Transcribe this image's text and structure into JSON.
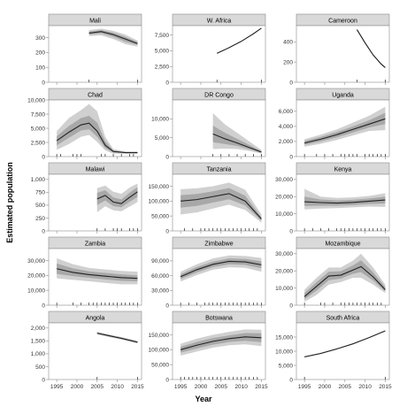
{
  "chart_data": {
    "type": "line",
    "ylabel": "Estimated population",
    "xlabel": "Year",
    "xlim": [
      1993,
      2016
    ],
    "x_ticks": [
      1995,
      2000,
      2005,
      2010,
      2015
    ],
    "x_tick_labels": [
      "1995",
      "2000",
      "2005",
      "2010",
      "2015"
    ],
    "colors": {
      "strip": "#d9d9d9",
      "band_outer": "#d0d0d0",
      "band_inner": "#a8a8a8",
      "line": "#222222",
      "axis": "#8c8c8c"
    },
    "panels": [
      {
        "title": "Mali",
        "ylim": [
          0,
          380
        ],
        "yticks": [
          0,
          100,
          200,
          300
        ],
        "ytick_labels": [
          "0",
          "100",
          "200",
          "300"
        ],
        "x": [
          2003,
          2006,
          2009,
          2012,
          2015
        ],
        "y": [
          330,
          340,
          320,
          290,
          260
        ],
        "lo90": [
          310,
          315,
          290,
          255,
          240
        ],
        "hi90": [
          350,
          360,
          345,
          320,
          280
        ],
        "lo50": [
          320,
          328,
          305,
          272,
          250
        ],
        "hi50": [
          340,
          350,
          333,
          305,
          270
        ],
        "rug": [
          2003,
          2015
        ]
      },
      {
        "title": "W. Africa",
        "ylim": [
          0,
          9000
        ],
        "yticks": [
          0,
          2500,
          5000,
          7500
        ],
        "ytick_labels": [
          "0",
          "2,500",
          "5,000",
          "7,500"
        ],
        "x": [
          2004,
          2007,
          2010,
          2013,
          2015
        ],
        "y": [
          4600,
          5500,
          6500,
          7700,
          8600
        ],
        "lo90": [
          4550,
          5450,
          6450,
          7650,
          8550
        ],
        "hi90": [
          4650,
          5550,
          6550,
          7750,
          8650
        ],
        "lo50": [
          4580,
          5480,
          6480,
          7680,
          8580
        ],
        "hi50": [
          4620,
          5520,
          6520,
          7720,
          8620
        ],
        "rug": [
          2004,
          2015
        ]
      },
      {
        "title": "Cameroon",
        "ylim": [
          0,
          560
        ],
        "yticks": [
          0,
          200,
          400
        ],
        "ytick_labels": [
          "0",
          "200",
          "400"
        ],
        "x": [
          2008,
          2010,
          2012,
          2014,
          2015
        ],
        "y": [
          520,
          390,
          270,
          180,
          145
        ],
        "lo90": [
          510,
          380,
          262,
          172,
          138
        ],
        "hi90": [
          530,
          400,
          278,
          188,
          152
        ],
        "lo50": [
          515,
          385,
          266,
          176,
          141
        ],
        "hi50": [
          525,
          395,
          274,
          184,
          149
        ],
        "rug": [
          2008,
          2015
        ]
      },
      {
        "title": "Chad",
        "ylim": [
          0,
          10000
        ],
        "yticks": [
          0,
          2500,
          5000,
          7500,
          10000
        ],
        "ytick_labels": [
          "0",
          "2,500",
          "5,000",
          "7,500",
          "10,000"
        ],
        "x": [
          1995,
          1998,
          2001,
          2003,
          2005,
          2007,
          2009,
          2012,
          2015
        ],
        "y": [
          2800,
          4300,
          5600,
          5900,
          4500,
          2000,
          900,
          700,
          700
        ],
        "lo90": [
          1200,
          2200,
          3500,
          3800,
          2600,
          1100,
          500,
          500,
          500
        ],
        "hi90": [
          4500,
          6800,
          8200,
          9300,
          8000,
          3500,
          1300,
          900,
          900
        ],
        "lo50": [
          2000,
          3300,
          4600,
          4800,
          3500,
          1500,
          700,
          600,
          600
        ],
        "hi50": [
          3600,
          5400,
          6800,
          7200,
          6000,
          2700,
          1100,
          800,
          800
        ],
        "rug": [
          1995,
          1996,
          1999,
          2000,
          2001,
          2006,
          2007,
          2009,
          2011,
          2013,
          2014
        ]
      },
      {
        "title": "DR Congo",
        "ylim": [
          0,
          15000
        ],
        "yticks": [
          0,
          5000,
          10000
        ],
        "ytick_labels": [
          "0",
          "5,000",
          "10,000"
        ],
        "x": [
          2003,
          2006,
          2009,
          2012,
          2015
        ],
        "y": [
          6000,
          4700,
          3600,
          2400,
          1200
        ],
        "lo90": [
          2000,
          2100,
          2000,
          1500,
          800
        ],
        "hi90": [
          11500,
          8500,
          6300,
          4000,
          1800
        ],
        "lo50": [
          3800,
          3300,
          2800,
          1900,
          1000
        ],
        "hi50": [
          8200,
          6300,
          4700,
          3100,
          1400
        ],
        "rug": [
          2003,
          2005,
          2007,
          2009,
          2011,
          2013,
          2015
        ]
      },
      {
        "title": "Uganda",
        "ylim": [
          0,
          7500
        ],
        "yticks": [
          0,
          2000,
          4000,
          6000
        ],
        "ytick_labels": [
          "0",
          "2,000",
          "4,000",
          "6,000"
        ],
        "x": [
          1995,
          1999,
          2003,
          2007,
          2011,
          2015
        ],
        "y": [
          1800,
          2300,
          2900,
          3600,
          4300,
          5000
        ],
        "lo90": [
          1300,
          1700,
          2200,
          2800,
          3400,
          3500
        ],
        "hi90": [
          2300,
          2900,
          3600,
          4500,
          5400,
          6600
        ],
        "lo50": [
          1550,
          2000,
          2550,
          3200,
          3850,
          4300
        ],
        "hi50": [
          2050,
          2600,
          3250,
          4000,
          4800,
          5800
        ],
        "rug": [
          1995,
          1998,
          2000,
          2002,
          2004,
          2005,
          2006,
          2007,
          2008,
          2010,
          2011,
          2012,
          2013,
          2014,
          2015
        ]
      },
      {
        "title": "Malawi",
        "ylim": [
          0,
          1100
        ],
        "yticks": [
          0,
          250,
          500,
          750,
          1000
        ],
        "ytick_labels": [
          "0",
          "250",
          "500",
          "750",
          "1,000"
        ],
        "x": [
          2005,
          2007,
          2009,
          2011,
          2013,
          2015
        ],
        "y": [
          620,
          690,
          560,
          530,
          650,
          760
        ],
        "lo90": [
          360,
          480,
          400,
          380,
          470,
          560
        ],
        "hi90": [
          830,
          880,
          760,
          720,
          840,
          920
        ],
        "lo50": [
          500,
          590,
          480,
          460,
          560,
          660
        ],
        "hi50": [
          740,
          790,
          650,
          610,
          740,
          850
        ],
        "rug": [
          2005,
          2007,
          2009,
          2010,
          2011,
          2013,
          2014,
          2015
        ]
      },
      {
        "title": "Tanzania",
        "ylim": [
          0,
          190000
        ],
        "yticks": [
          0,
          50000,
          100000,
          150000
        ],
        "ytick_labels": [
          "0",
          "50,000",
          "100,000",
          "150,000"
        ],
        "x": [
          1995,
          1999,
          2003,
          2007,
          2011,
          2015
        ],
        "y": [
          100000,
          105000,
          115000,
          125000,
          100000,
          40000
        ],
        "lo90": [
          55000,
          62000,
          75000,
          88000,
          70000,
          28000
        ],
        "hi90": [
          140000,
          143000,
          150000,
          162000,
          138000,
          55000
        ],
        "lo50": [
          78000,
          84000,
          95000,
          106000,
          85000,
          34000
        ],
        "hi50": [
          120000,
          124000,
          133000,
          144000,
          118000,
          46000
        ],
        "rug": [
          1996,
          1998,
          2000,
          2001,
          2002,
          2003,
          2004,
          2005,
          2006,
          2007,
          2008,
          2009,
          2010,
          2011,
          2012,
          2013,
          2014
        ]
      },
      {
        "title": "Kenya",
        "ylim": [
          0,
          33000
        ],
        "yticks": [
          0,
          10000,
          20000,
          30000
        ],
        "ytick_labels": [
          "0",
          "10,000",
          "20,000",
          "30,000"
        ],
        "x": [
          1995,
          1999,
          2003,
          2007,
          2011,
          2015
        ],
        "y": [
          17000,
          16500,
          16200,
          16600,
          17300,
          18000
        ],
        "lo90": [
          12500,
          13000,
          13300,
          13700,
          14200,
          14000
        ],
        "hi90": [
          24500,
          20000,
          19200,
          19500,
          20400,
          22000
        ],
        "lo50": [
          14500,
          14700,
          14700,
          15100,
          15700,
          16000
        ],
        "hi50": [
          20000,
          18300,
          17700,
          18100,
          18900,
          20000
        ],
        "rug": [
          1995,
          1997,
          1999,
          2001,
          2003,
          2004,
          2005,
          2006,
          2007,
          2008,
          2009,
          2010,
          2011,
          2012,
          2013,
          2014,
          2015
        ]
      },
      {
        "title": "Zambia",
        "ylim": [
          0,
          38000
        ],
        "yticks": [
          0,
          10000,
          20000,
          30000
        ],
        "ytick_labels": [
          "0",
          "10,000",
          "20,000",
          "30,000"
        ],
        "x": [
          1995,
          1999,
          2003,
          2007,
          2011,
          2015
        ],
        "y": [
          24500,
          22000,
          20500,
          19500,
          18500,
          18000
        ],
        "lo90": [
          18000,
          17000,
          16000,
          15000,
          14000,
          14000
        ],
        "hi90": [
          31500,
          27500,
          25000,
          24000,
          23000,
          22500
        ],
        "lo50": [
          21000,
          19500,
          18300,
          17300,
          16300,
          16000
        ],
        "hi50": [
          28000,
          24700,
          22700,
          21700,
          20700,
          20000
        ],
        "rug": [
          1995,
          1999,
          2001,
          2003,
          2004,
          2005,
          2006,
          2007,
          2008,
          2009,
          2010,
          2011,
          2012,
          2013,
          2014,
          2015
        ]
      },
      {
        "title": "Zimbabwe",
        "ylim": [
          0,
          115000
        ],
        "yticks": [
          0,
          30000,
          60000,
          90000
        ],
        "ytick_labels": [
          "0",
          "30,000",
          "60,000",
          "90,000"
        ],
        "x": [
          1995,
          1999,
          2003,
          2007,
          2011,
          2015
        ],
        "y": [
          58000,
          72000,
          83000,
          89000,
          88000,
          82000
        ],
        "lo90": [
          48000,
          61000,
          72000,
          77000,
          76000,
          68000
        ],
        "hi90": [
          68000,
          83000,
          95000,
          101000,
          100000,
          96000
        ],
        "lo50": [
          53000,
          66500,
          77500,
          83000,
          82000,
          75000
        ],
        "hi50": [
          63000,
          77500,
          88500,
          95000,
          94000,
          89000
        ],
        "rug": [
          1995,
          1997,
          1999,
          2001,
          2002,
          2003,
          2004,
          2005,
          2006,
          2007,
          2008,
          2009,
          2010,
          2011,
          2012,
          2013,
          2014,
          2015
        ]
      },
      {
        "title": "Mozambique",
        "ylim": [
          0,
          33000
        ],
        "yticks": [
          0,
          10000,
          20000,
          30000
        ],
        "ytick_labels": [
          "0",
          "10,000",
          "20,000",
          "30,000"
        ],
        "x": [
          1995,
          1998,
          2001,
          2004,
          2007,
          2009,
          2012,
          2015
        ],
        "y": [
          5000,
          11000,
          17000,
          17500,
          20500,
          22500,
          16500,
          9000
        ],
        "lo90": [
          2000,
          6000,
          12000,
          13500,
          16000,
          16000,
          12000,
          7000
        ],
        "hi90": [
          9000,
          16000,
          22000,
          22000,
          26000,
          30000,
          22000,
          12000
        ],
        "lo50": [
          3500,
          8500,
          14500,
          15500,
          18300,
          19300,
          14300,
          8000
        ],
        "hi50": [
          7000,
          13500,
          19500,
          19800,
          23200,
          26200,
          19200,
          10500
        ],
        "rug": [
          1995,
          1999,
          2000,
          2002,
          2004,
          2005,
          2006,
          2007,
          2008,
          2009,
          2010,
          2011,
          2012,
          2013,
          2014
        ]
      },
      {
        "title": "Angola",
        "ylim": [
          0,
          2200
        ],
        "yticks": [
          0,
          500,
          1000,
          1500,
          2000
        ],
        "ytick_labels": [
          "0",
          "500",
          "1,000",
          "1,500",
          "2,000"
        ],
        "x": [
          2005,
          2008,
          2011,
          2015
        ],
        "y": [
          1800,
          1700,
          1600,
          1450
        ],
        "lo90": [
          1750,
          1650,
          1550,
          1400
        ],
        "hi90": [
          1850,
          1750,
          1650,
          1500
        ],
        "lo50": [
          1775,
          1675,
          1575,
          1425
        ],
        "hi50": [
          1825,
          1725,
          1625,
          1475
        ],
        "rug": [
          2005,
          2015
        ]
      },
      {
        "title": "Botswana",
        "ylim": [
          0,
          190000
        ],
        "yticks": [
          0,
          50000,
          100000,
          150000
        ],
        "ytick_labels": [
          "0",
          "50,000",
          "100,000",
          "150,000"
        ],
        "x": [
          1995,
          1999,
          2003,
          2007,
          2011,
          2015
        ],
        "y": [
          100000,
          115000,
          128000,
          137000,
          143000,
          140000
        ],
        "lo90": [
          80000,
          94000,
          107000,
          115000,
          118000,
          112000
        ],
        "hi90": [
          120000,
          137000,
          150000,
          160000,
          168000,
          167000
        ],
        "lo50": [
          90000,
          104000,
          117000,
          126000,
          130000,
          125000
        ],
        "hi50": [
          110000,
          126000,
          139000,
          148000,
          156000,
          155000
        ],
        "rug": [
          1995,
          1996,
          1997,
          1998,
          1999,
          2000,
          2001,
          2002,
          2003,
          2004,
          2005,
          2006,
          2007,
          2008,
          2009,
          2010,
          2011,
          2012,
          2013,
          2014
        ]
      },
      {
        "title": "South Africa",
        "ylim": [
          0,
          20000
        ],
        "yticks": [
          0,
          5000,
          10000,
          15000
        ],
        "ytick_labels": [
          "0",
          "5,000",
          "10,000",
          "15,000"
        ],
        "x": [
          1995,
          1999,
          2003,
          2007,
          2011,
          2015
        ],
        "y": [
          8000,
          9200,
          10800,
          12600,
          14800,
          17200
        ],
        "lo90": [
          7900,
          9100,
          10700,
          12500,
          14700,
          17000
        ],
        "hi90": [
          8100,
          9300,
          10900,
          12700,
          14900,
          17400
        ],
        "lo50": [
          7950,
          9150,
          10750,
          12550,
          14750,
          17100
        ],
        "hi50": [
          8050,
          9250,
          10850,
          12650,
          14850,
          17300
        ],
        "rug": [
          1995,
          2015
        ]
      }
    ]
  }
}
